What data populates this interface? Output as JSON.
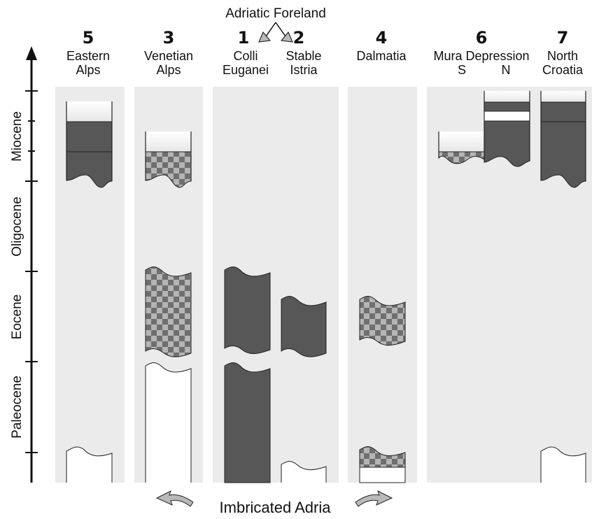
{
  "header": {
    "foreland_label": "Adriatic Foreland"
  },
  "columns": [
    {
      "number": "5",
      "line1": "Eastern",
      "line2": "Alps"
    },
    {
      "number": "3",
      "line1": "Venetian",
      "line2": "Alps"
    },
    {
      "number": "1",
      "line1": "Colli",
      "line2": "Euganei"
    },
    {
      "number": "2",
      "line1": "Stable",
      "line2": "Istria"
    },
    {
      "number": "4",
      "line1": "Dalmatia",
      "line2": ""
    },
    {
      "number": "6",
      "line1": "Mura Depression",
      "line2a": "S",
      "line2b": "N"
    },
    {
      "number": "7",
      "line1": "North",
      "line2": "Croatia"
    }
  ],
  "time_axis": {
    "epochs": [
      "Miocene",
      "Oligocene",
      "Eocene",
      "Paleocene"
    ]
  },
  "footer": {
    "label": "Imbricated Adria"
  },
  "colors": {
    "panel": "#ebebeb",
    "dark_fill": "#575757",
    "check_light": "#b5b5b5",
    "check_dark": "#6f6f6f",
    "outline": "#222222",
    "arrow_fill": "#b9b9b9"
  }
}
